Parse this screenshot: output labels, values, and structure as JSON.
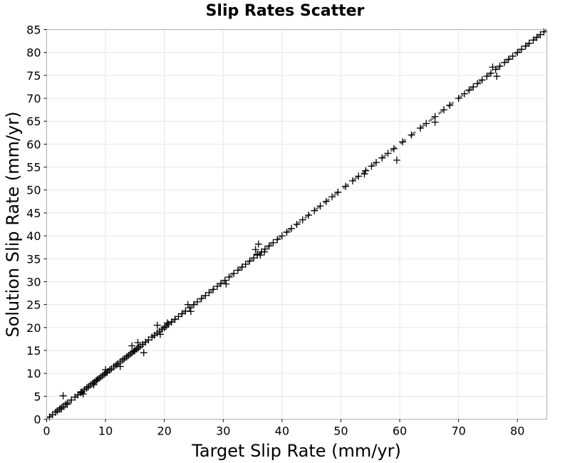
{
  "chart_data": {
    "type": "scatter",
    "title": "Slip Rates Scatter",
    "xlabel": "Target Slip Rate (mm/yr)",
    "ylabel": "Solution Slip Rate (mm/yr)",
    "xlim": [
      0,
      85
    ],
    "ylim": [
      0,
      85
    ],
    "xticks": [
      0,
      10,
      20,
      30,
      40,
      50,
      60,
      70,
      80
    ],
    "yticks": [
      0,
      5,
      10,
      15,
      20,
      25,
      30,
      35,
      40,
      45,
      50,
      55,
      60,
      65,
      70,
      75,
      80,
      85
    ],
    "grid": true,
    "marker": "plus",
    "marker_color": "#000000",
    "reference_line": {
      "style": "dashed",
      "color": "#808080",
      "x": [
        0,
        85
      ],
      "y": [
        0,
        85
      ]
    },
    "series": [
      {
        "x": [
          0.5,
          1,
          1.5,
          1.8,
          2.2,
          2.5,
          2.8,
          3.2,
          3.5,
          4.2,
          4.8,
          5.3,
          5.8,
          6,
          6.4,
          6.8,
          7.1,
          7.5,
          7.8,
          8.1,
          8.4,
          8.6,
          8.9,
          9.2,
          9.5,
          9.8,
          10.1,
          10.3,
          10.7,
          11,
          11.4,
          11.8,
          12.1,
          12.5,
          12.9,
          13.2,
          13.6,
          13.9,
          14.2,
          14.5,
          14.8,
          15,
          15.3,
          15.6,
          15.9,
          16.3,
          16.8,
          17.3,
          17.9,
          18.3,
          18.8,
          19.2,
          19.6,
          20,
          20.3,
          20.7,
          21.2,
          21.8,
          22.4,
          23,
          23.6,
          24.3,
          25,
          25.6,
          26.3,
          27,
          27.6,
          28.3,
          29,
          29.6,
          30.3,
          31,
          31.8,
          32.5,
          33.2,
          33.8,
          34.5,
          35.2,
          35.8,
          36.5,
          37.1,
          37.8,
          38.5,
          39.2,
          40,
          40.8,
          41.6,
          42.5,
          43.5,
          44.5,
          45.5,
          46.5,
          47.5,
          48.5,
          49.5,
          50.8,
          52,
          53,
          54.2,
          55.2,
          56,
          57,
          58,
          59,
          60.5,
          62,
          63.5,
          64.5,
          66,
          67.5,
          68.5,
          70,
          71,
          71.8,
          72.5,
          73.2,
          74,
          74.8,
          75.5,
          76.3,
          77,
          77.8,
          78.5,
          79.2,
          80,
          80.7,
          81.4,
          82,
          82.7,
          83.3,
          83.9,
          84.5,
          2.8,
          2.5,
          3.5,
          6.2,
          8,
          10,
          12.5,
          14.5,
          15.5,
          16.5,
          18.8,
          19.3,
          20.5,
          24,
          24.5,
          30.5,
          35.5,
          35.8,
          36,
          36.3,
          37,
          54,
          59.5,
          66,
          75.8,
          76.5
        ],
        "y": [
          0.5,
          1,
          1.5,
          1.8,
          2.2,
          2.5,
          2.8,
          3.2,
          3.5,
          4.2,
          4.8,
          5.3,
          5.8,
          6,
          6.4,
          6.8,
          7.1,
          7.5,
          7.8,
          8.1,
          8.4,
          8.6,
          8.9,
          9.2,
          9.5,
          9.8,
          10.1,
          10.3,
          10.7,
          11,
          11.4,
          11.8,
          12.1,
          12.5,
          12.9,
          13.2,
          13.6,
          13.9,
          14.2,
          14.5,
          14.8,
          15,
          15.3,
          15.6,
          15.9,
          16.3,
          16.8,
          17.3,
          17.9,
          18.3,
          18.8,
          19.2,
          19.6,
          20,
          20.3,
          20.7,
          21.2,
          21.8,
          22.4,
          23,
          23.6,
          24.3,
          25,
          25.6,
          26.3,
          27,
          27.6,
          28.3,
          29,
          29.6,
          30.3,
          31,
          31.8,
          32.5,
          33.2,
          33.8,
          34.5,
          35.2,
          35.8,
          36.5,
          37.1,
          37.8,
          38.5,
          39.2,
          40,
          40.8,
          41.6,
          42.5,
          43.5,
          44.5,
          45.5,
          46.5,
          47.5,
          48.5,
          49.5,
          50.8,
          52,
          53,
          54.2,
          55.2,
          56,
          57,
          58,
          59,
          60.5,
          62,
          63.5,
          64.5,
          66,
          67.5,
          68.5,
          70,
          71,
          71.8,
          72.5,
          73.2,
          74,
          74.8,
          75.5,
          76.3,
          77,
          77.8,
          78.5,
          79.2,
          80,
          80.7,
          81.4,
          82,
          82.7,
          83.3,
          83.9,
          84.5,
          5.1,
          2.2,
          3.2,
          5.5,
          7.5,
          10.8,
          11.5,
          16,
          16.7,
          14.5,
          20.5,
          18.5,
          21,
          25,
          23.5,
          29.5,
          37,
          36,
          38.2,
          35.8,
          36.5,
          53.5,
          56.5,
          64.8,
          76.8,
          74.8
        ]
      }
    ]
  }
}
